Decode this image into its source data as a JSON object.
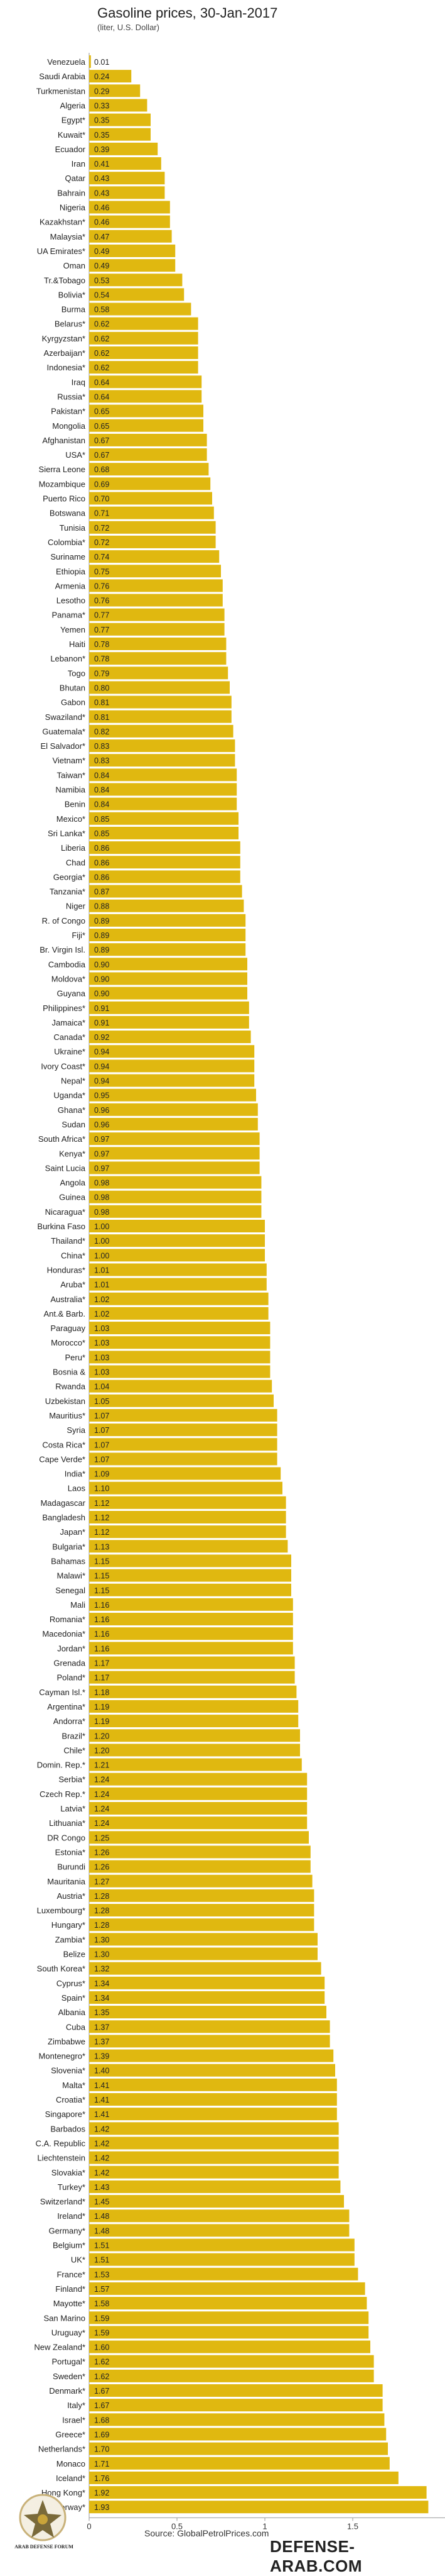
{
  "chart_data": {
    "type": "bar",
    "orientation": "horizontal",
    "title": "Gasoline prices, 30-Jan-2017",
    "subtitle": "(liter, U.S. Dollar)",
    "xlim": [
      0,
      2
    ],
    "xticks": [
      "0",
      "0.5",
      "1",
      "1.5"
    ],
    "bar_color": "#e0b810",
    "categories": [
      "Venezuela",
      "Saudi Arabia",
      "Turkmenistan",
      "Algeria",
      "Egypt*",
      "Kuwait*",
      "Ecuador",
      "Iran",
      "Qatar",
      "Bahrain",
      "Nigeria",
      "Kazakhstan*",
      "Malaysia*",
      "UA Emirates*",
      "Oman",
      "Tr.&Tobago",
      "Bolivia*",
      "Burma",
      "Belarus*",
      "Kyrgyzstan*",
      "Azerbaijan*",
      "Indonesia*",
      "Iraq",
      "Russia*",
      "Pakistan*",
      "Mongolia",
      "Afghanistan",
      "USA*",
      "Sierra Leone",
      "Mozambique",
      "Puerto Rico",
      "Botswana",
      "Tunisia",
      "Colombia*",
      "Suriname",
      "Ethiopia",
      "Armenia",
      "Lesotho",
      "Panama*",
      "Yemen",
      "Haiti",
      "Lebanon*",
      "Togo",
      "Bhutan",
      "Gabon",
      "Swaziland*",
      "Guatemala*",
      "El Salvador*",
      "Vietnam*",
      "Taiwan*",
      "Namibia",
      "Benin",
      "Mexico*",
      "Sri Lanka*",
      "Liberia",
      "Chad",
      "Georgia*",
      "Tanzania*",
      "Niger",
      "R. of Congo",
      "Fiji*",
      "Br. Virgin Isl.",
      "Cambodia",
      "Moldova*",
      "Guyana",
      "Philippines*",
      "Jamaica*",
      "Canada*",
      "Ukraine*",
      "Ivory Coast*",
      "Nepal*",
      "Uganda*",
      "Ghana*",
      "Sudan",
      "South Africa*",
      "Kenya*",
      "Saint Lucia",
      "Angola",
      "Guinea",
      "Nicaragua*",
      "Burkina Faso",
      "Thailand*",
      "China*",
      "Honduras*",
      "Aruba*",
      "Australia*",
      "Ant.& Barb.",
      "Paraguay",
      "Morocco*",
      "Peru*",
      "Bosnia &",
      "Rwanda",
      "Uzbekistan",
      "Mauritius*",
      "Syria",
      "Costa Rica*",
      "Cape Verde*",
      "India*",
      "Laos",
      "Madagascar",
      "Bangladesh",
      "Japan*",
      "Bulgaria*",
      "Bahamas",
      "Malawi*",
      "Senegal",
      "Mali",
      "Romania*",
      "Macedonia*",
      "Jordan*",
      "Grenada",
      "Poland*",
      "Cayman Isl.*",
      "Argentina*",
      "Andorra*",
      "Brazil*",
      "Chile*",
      "Domin. Rep.*",
      "Serbia*",
      "Czech Rep.*",
      "Latvia*",
      "Lithuania*",
      "DR Congo",
      "Estonia*",
      "Burundi",
      "Mauritania",
      "Austria*",
      "Luxembourg*",
      "Hungary*",
      "Zambia*",
      "Belize",
      "South Korea*",
      "Cyprus*",
      "Spain*",
      "Albania",
      "Cuba",
      "Zimbabwe",
      "Montenegro*",
      "Slovenia*",
      "Malta*",
      "Croatia*",
      "Singapore*",
      "Barbados",
      "C.A. Republic",
      "Liechtenstein",
      "Slovakia*",
      "Turkey*",
      "Switzerland*",
      "Ireland*",
      "Germany*",
      "Belgium*",
      "UK*",
      "France*",
      "Finland*",
      "Mayotte*",
      "San Marino",
      "Uruguay*",
      "New Zealand*",
      "Portugal*",
      "Sweden*",
      "Denmark*",
      "Italy*",
      "Israel*",
      "Greece*",
      "Netherlands*",
      "Monaco",
      "Iceland*",
      "Hong Kong*",
      "Norway*"
    ],
    "values": [
      0.01,
      0.24,
      0.29,
      0.33,
      0.35,
      0.35,
      0.39,
      0.41,
      0.43,
      0.43,
      0.46,
      0.46,
      0.47,
      0.49,
      0.49,
      0.53,
      0.54,
      0.58,
      0.62,
      0.62,
      0.62,
      0.62,
      0.64,
      0.64,
      0.65,
      0.65,
      0.67,
      0.67,
      0.68,
      0.69,
      0.7,
      0.71,
      0.72,
      0.72,
      0.74,
      0.75,
      0.76,
      0.76,
      0.77,
      0.77,
      0.78,
      0.78,
      0.79,
      0.8,
      0.81,
      0.81,
      0.82,
      0.83,
      0.83,
      0.84,
      0.84,
      0.84,
      0.85,
      0.85,
      0.86,
      0.86,
      0.86,
      0.87,
      0.88,
      0.89,
      0.89,
      0.89,
      0.9,
      0.9,
      0.9,
      0.91,
      0.91,
      0.92,
      0.94,
      0.94,
      0.94,
      0.95,
      0.96,
      0.96,
      0.97,
      0.97,
      0.97,
      0.98,
      0.98,
      0.98,
      1.0,
      1.0,
      1.0,
      1.01,
      1.01,
      1.02,
      1.02,
      1.03,
      1.03,
      1.03,
      1.03,
      1.04,
      1.05,
      1.07,
      1.07,
      1.07,
      1.07,
      1.09,
      1.1,
      1.12,
      1.12,
      1.12,
      1.13,
      1.15,
      1.15,
      1.15,
      1.16,
      1.16,
      1.16,
      1.16,
      1.17,
      1.17,
      1.18,
      1.19,
      1.19,
      1.2,
      1.2,
      1.21,
      1.24,
      1.24,
      1.24,
      1.24,
      1.25,
      1.26,
      1.26,
      1.27,
      1.28,
      1.28,
      1.28,
      1.3,
      1.3,
      1.32,
      1.34,
      1.34,
      1.35,
      1.37,
      1.37,
      1.39,
      1.4,
      1.41,
      1.41,
      1.41,
      1.42,
      1.42,
      1.42,
      1.42,
      1.43,
      1.45,
      1.48,
      1.48,
      1.51,
      1.51,
      1.53,
      1.57,
      1.58,
      1.59,
      1.59,
      1.6,
      1.62,
      1.62,
      1.67,
      1.67,
      1.68,
      1.69,
      1.7,
      1.71,
      1.76,
      1.92,
      1.93
    ]
  },
  "source": "Source: GlobalPetrolPrices.com",
  "watermark": "DEFENSE-ARAB.COM",
  "logo_text": "ARAB DEFENSE FORUM"
}
